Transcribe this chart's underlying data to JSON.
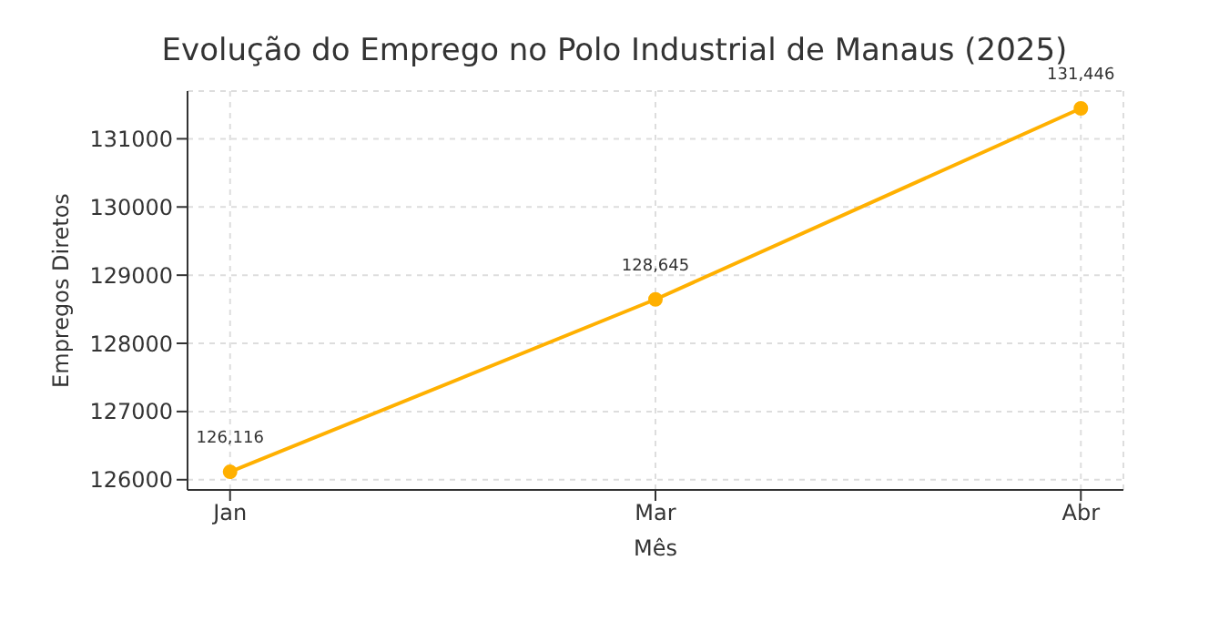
{
  "chart_data": {
    "type": "line",
    "title": "Evolução do Emprego no Polo Industrial de Manaus (2025)",
    "xlabel": "Mês",
    "ylabel": "Empregos Diretos",
    "categories": [
      "Jan",
      "Mar",
      "Abr"
    ],
    "series": [
      {
        "color": "#ffb000",
        "values": [
          126116,
          128645,
          131446
        ],
        "value_labels": [
          "126,116",
          "128,645",
          "131,446"
        ]
      }
    ],
    "ylim": [
      125850,
      131700
    ],
    "yticks": [
      126000,
      127000,
      128000,
      129000,
      130000,
      131000
    ],
    "grid": true,
    "marker": "circle",
    "line_style": "solid",
    "legend": false
  }
}
